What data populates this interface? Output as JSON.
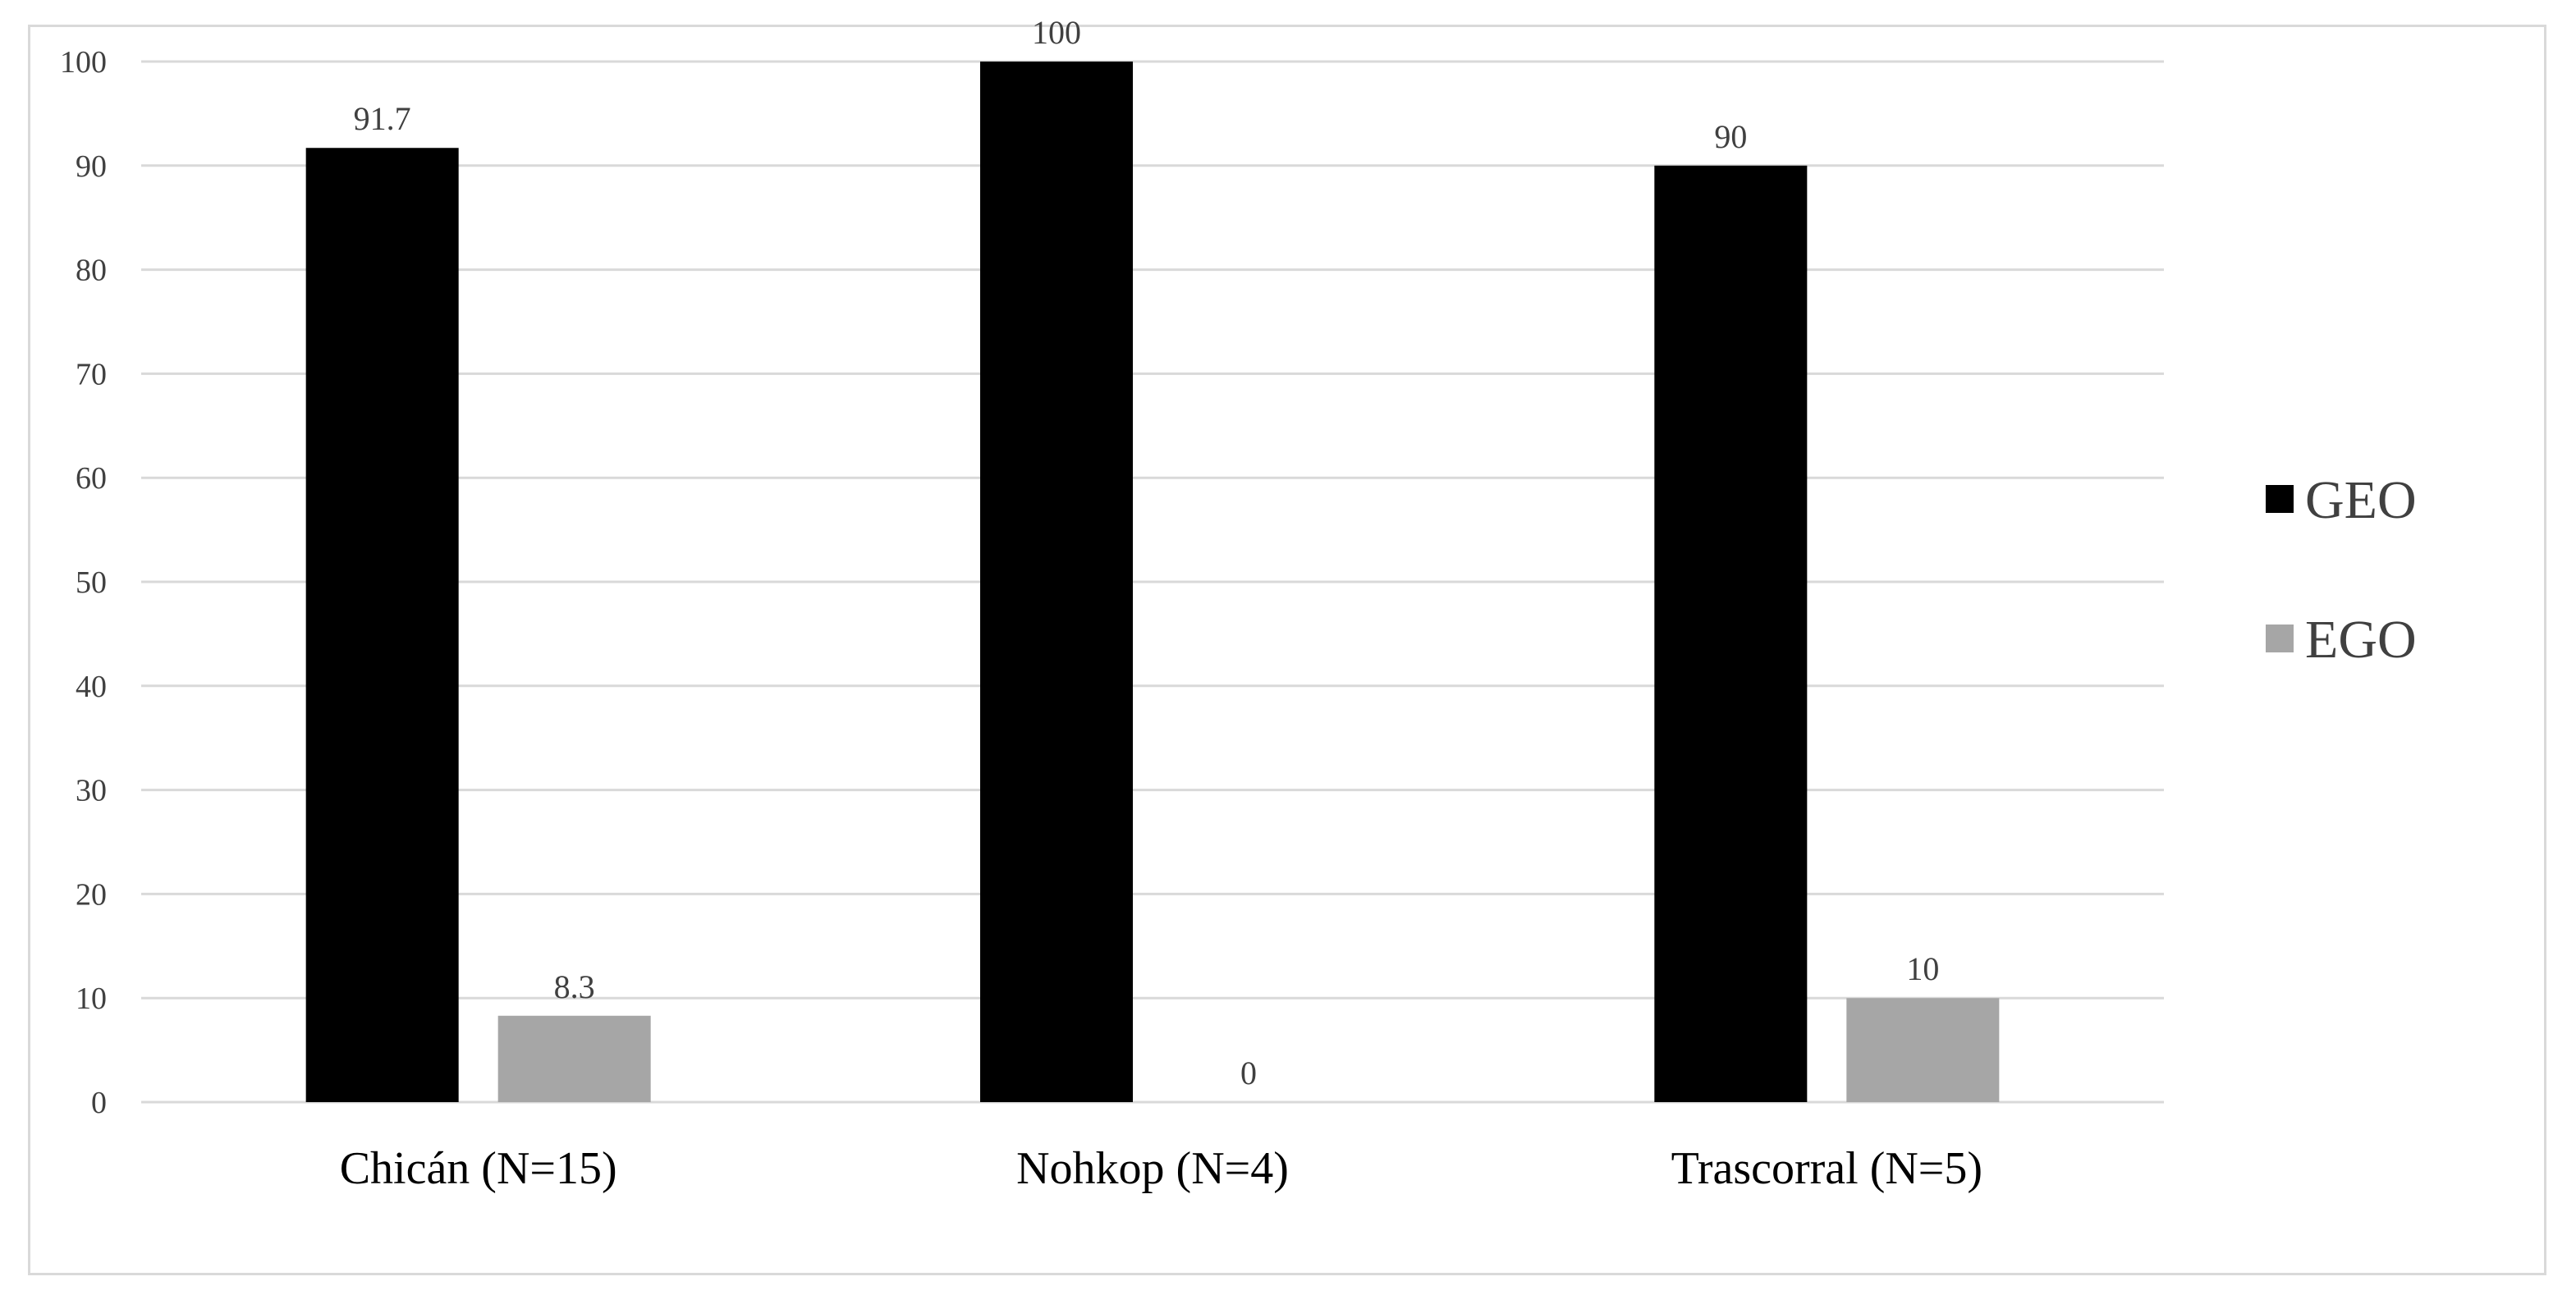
{
  "chart_data": {
    "type": "bar",
    "categories": [
      "Chicán (N=15)",
      "Nohkop (N=4)",
      "Trascorral (N=5)"
    ],
    "series": [
      {
        "name": "GEO",
        "values": [
          91.7,
          100,
          90
        ],
        "labels": [
          "91.7",
          "100",
          "90"
        ],
        "color": "#000000"
      },
      {
        "name": "EGO",
        "values": [
          8.3,
          0,
          10
        ],
        "labels": [
          "8.3",
          "0",
          "10"
        ],
        "color": "#a6a6a6"
      }
    ],
    "ylim": [
      0,
      100
    ],
    "yticks": [
      0,
      10,
      20,
      30,
      40,
      50,
      60,
      70,
      80,
      90,
      100
    ],
    "grid": true,
    "gridline_color": "#d9d9d9",
    "legend_position": "right",
    "title": "",
    "xlabel": "",
    "ylabel": ""
  }
}
